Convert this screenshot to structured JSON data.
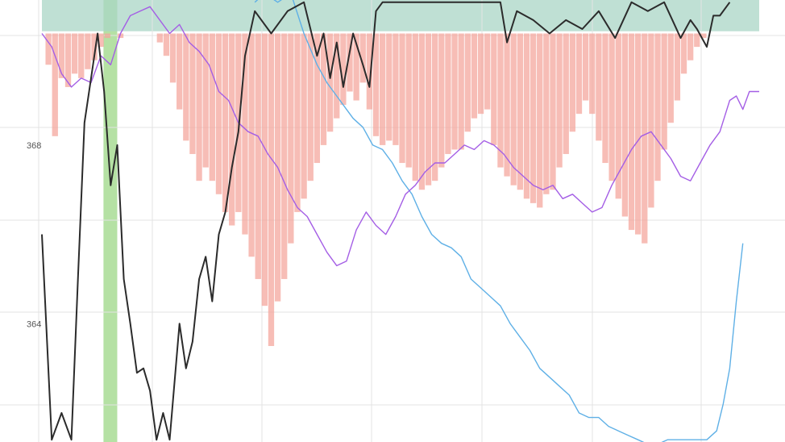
{
  "chart_data": {
    "type": "line",
    "title": "",
    "xlabel": "",
    "ylabel": "",
    "ylim": [
      361.35,
      371.25
    ],
    "xlim": [
      0,
      219
    ],
    "grid": true,
    "legend": "none",
    "y_ticks": [
      {
        "value": 368,
        "label": "368"
      },
      {
        "value": 364,
        "label": "364"
      }
    ],
    "colors": {
      "black_series": "#2b2b2b",
      "blue_series": "#5fb0e6",
      "purple_series": "#a45ee5",
      "red_bars": "#f4a49a",
      "green_band": "#a8dc94",
      "teal_band": "#a9d5c6",
      "grid": "#e3e3e3"
    },
    "series": [
      {
        "kind": "line",
        "color": "black",
        "points": [
          [
            0,
            366.0
          ],
          [
            3,
            361.4
          ],
          [
            6,
            362.0
          ],
          [
            9,
            361.4
          ],
          [
            11,
            365.0
          ],
          [
            13,
            368.5
          ],
          [
            15,
            369.5
          ],
          [
            17,
            370.5
          ],
          [
            19,
            369.2
          ],
          [
            21,
            367.1
          ],
          [
            23,
            368.0
          ],
          [
            25,
            365.0
          ],
          [
            27,
            364.0
          ],
          [
            29,
            362.9
          ],
          [
            31,
            363.0
          ],
          [
            33,
            362.5
          ],
          [
            35,
            361.4
          ],
          [
            37,
            362.0
          ],
          [
            39,
            361.4
          ],
          [
            42,
            364.0
          ],
          [
            44,
            363.0
          ],
          [
            46,
            363.6
          ],
          [
            48,
            365.0
          ],
          [
            50,
            365.5
          ],
          [
            52,
            364.5
          ],
          [
            54,
            366.0
          ],
          [
            56,
            366.5
          ],
          [
            58,
            367.5
          ],
          [
            60,
            368.3
          ],
          [
            62,
            370.0
          ],
          [
            65,
            371.0
          ],
          [
            70,
            370.5
          ],
          [
            75,
            371.0
          ],
          [
            80,
            371.2
          ],
          [
            84,
            370.0
          ],
          [
            86,
            370.5
          ],
          [
            88,
            369.5
          ],
          [
            90,
            370.3
          ],
          [
            92,
            369.3
          ],
          [
            95,
            370.5
          ],
          [
            98,
            369.8
          ],
          [
            100,
            369.3
          ],
          [
            102,
            371.0
          ],
          [
            104,
            371.2
          ],
          [
            110,
            371.2
          ],
          [
            140,
            371.2
          ],
          [
            142,
            370.3
          ],
          [
            145,
            371.0
          ],
          [
            150,
            370.8
          ],
          [
            155,
            370.5
          ],
          [
            160,
            370.8
          ],
          [
            165,
            370.6
          ],
          [
            170,
            371.0
          ],
          [
            175,
            370.4
          ],
          [
            180,
            371.2
          ],
          [
            185,
            371.0
          ],
          [
            190,
            371.2
          ],
          [
            195,
            370.4
          ],
          [
            198,
            370.8
          ],
          [
            200,
            370.6
          ],
          [
            203,
            370.2
          ],
          [
            205,
            370.9
          ],
          [
            207,
            370.9
          ],
          [
            210,
            371.2
          ]
        ]
      },
      {
        "kind": "line",
        "color": "blue",
        "points": [
          [
            65,
            371.2
          ],
          [
            68,
            371.4
          ],
          [
            72,
            371.2
          ],
          [
            76,
            371.4
          ],
          [
            80,
            370.5
          ],
          [
            84,
            369.8
          ],
          [
            87,
            369.4
          ],
          [
            89,
            369.2
          ],
          [
            91,
            369.0
          ],
          [
            93,
            368.8
          ],
          [
            95,
            368.6
          ],
          [
            98,
            368.4
          ],
          [
            101,
            368.0
          ],
          [
            104,
            367.9
          ],
          [
            107,
            367.6
          ],
          [
            110,
            367.2
          ],
          [
            113,
            366.9
          ],
          [
            116,
            366.4
          ],
          [
            119,
            366.0
          ],
          [
            122,
            365.8
          ],
          [
            125,
            365.7
          ],
          [
            128,
            365.5
          ],
          [
            131,
            365.0
          ],
          [
            134,
            364.8
          ],
          [
            137,
            364.6
          ],
          [
            140,
            364.4
          ],
          [
            143,
            364.0
          ],
          [
            146,
            363.7
          ],
          [
            149,
            363.4
          ],
          [
            152,
            363.0
          ],
          [
            155,
            362.8
          ],
          [
            158,
            362.6
          ],
          [
            161,
            362.4
          ],
          [
            164,
            362.0
          ],
          [
            167,
            361.9
          ],
          [
            170,
            361.9
          ],
          [
            173,
            361.7
          ],
          [
            176,
            361.6
          ],
          [
            179,
            361.5
          ],
          [
            182,
            361.4
          ],
          [
            185,
            361.3
          ],
          [
            188,
            361.3
          ],
          [
            191,
            361.4
          ],
          [
            194,
            361.4
          ],
          [
            197,
            361.4
          ],
          [
            200,
            361.4
          ],
          [
            203,
            361.4
          ],
          [
            206,
            361.6
          ],
          [
            208,
            362.2
          ],
          [
            210,
            363.0
          ],
          [
            212,
            364.5
          ],
          [
            214,
            365.8
          ]
        ]
      },
      {
        "kind": "line",
        "color": "purple",
        "points": [
          [
            0,
            370.5
          ],
          [
            3,
            370.2
          ],
          [
            6,
            369.6
          ],
          [
            9,
            369.3
          ],
          [
            12,
            369.5
          ],
          [
            15,
            369.4
          ],
          [
            18,
            370.0
          ],
          [
            21,
            369.8
          ],
          [
            24,
            370.5
          ],
          [
            27,
            370.9
          ],
          [
            30,
            371.0
          ],
          [
            33,
            371.1
          ],
          [
            36,
            370.8
          ],
          [
            39,
            370.5
          ],
          [
            42,
            370.7
          ],
          [
            45,
            370.3
          ],
          [
            48,
            370.1
          ],
          [
            51,
            369.8
          ],
          [
            54,
            369.2
          ],
          [
            57,
            369.0
          ],
          [
            60,
            368.5
          ],
          [
            63,
            368.3
          ],
          [
            66,
            368.2
          ],
          [
            69,
            367.8
          ],
          [
            72,
            367.5
          ],
          [
            75,
            367.0
          ],
          [
            78,
            366.6
          ],
          [
            81,
            366.4
          ],
          [
            84,
            366.0
          ],
          [
            87,
            365.6
          ],
          [
            90,
            365.3
          ],
          [
            93,
            365.4
          ],
          [
            96,
            366.1
          ],
          [
            99,
            366.5
          ],
          [
            102,
            366.2
          ],
          [
            105,
            366.0
          ],
          [
            108,
            366.4
          ],
          [
            111,
            366.9
          ],
          [
            114,
            367.1
          ],
          [
            117,
            367.4
          ],
          [
            120,
            367.6
          ],
          [
            123,
            367.6
          ],
          [
            126,
            367.8
          ],
          [
            129,
            368.0
          ],
          [
            132,
            367.9
          ],
          [
            135,
            368.1
          ],
          [
            138,
            368.0
          ],
          [
            141,
            367.8
          ],
          [
            144,
            367.5
          ],
          [
            147,
            367.3
          ],
          [
            150,
            367.1
          ],
          [
            153,
            367.0
          ],
          [
            156,
            367.1
          ],
          [
            159,
            366.8
          ],
          [
            162,
            366.9
          ],
          [
            165,
            366.7
          ],
          [
            168,
            366.5
          ],
          [
            171,
            366.6
          ],
          [
            174,
            367.1
          ],
          [
            177,
            367.5
          ],
          [
            180,
            367.9
          ],
          [
            183,
            368.2
          ],
          [
            186,
            368.3
          ],
          [
            189,
            368.0
          ],
          [
            192,
            367.7
          ],
          [
            195,
            367.3
          ],
          [
            198,
            367.2
          ],
          [
            201,
            367.6
          ],
          [
            204,
            368.0
          ],
          [
            207,
            368.3
          ],
          [
            210,
            369.0
          ],
          [
            212,
            369.1
          ],
          [
            214,
            368.8
          ],
          [
            216,
            369.2
          ],
          [
            219,
            369.2
          ]
        ]
      }
    ],
    "bars": {
      "kind": "bar",
      "color": "red",
      "baseline": 370.5,
      "x": [
        2,
        4,
        6,
        8,
        10,
        12,
        14,
        16,
        18,
        20,
        22,
        24,
        26,
        28,
        30,
        32,
        34,
        36,
        38,
        40,
        42,
        44,
        46,
        48,
        50,
        52,
        54,
        56,
        58,
        60,
        62,
        64,
        66,
        68,
        70,
        72,
        74,
        76,
        78,
        80,
        82,
        84,
        86,
        88,
        90,
        92,
        94,
        96,
        98,
        100,
        102,
        104,
        106,
        108,
        110,
        112,
        114,
        116,
        118,
        120,
        122,
        124,
        126,
        128,
        130,
        132,
        134,
        136,
        138,
        140,
        142,
        144,
        146,
        148,
        150,
        152,
        154,
        156,
        158,
        160,
        162,
        164,
        166,
        168,
        170,
        172,
        174,
        176,
        178,
        180,
        182,
        184,
        186,
        188,
        190,
        192,
        194,
        196,
        198,
        200,
        202,
        204,
        206
      ],
      "values": [
        369.8,
        368.2,
        369.5,
        369.3,
        369.6,
        369.5,
        369.7,
        369.9,
        370.2,
        370.4,
        370.5,
        370.4,
        370.5,
        370.5,
        370.5,
        370.5,
        370.5,
        370.3,
        370.0,
        369.4,
        368.8,
        368.1,
        367.8,
        367.2,
        367.5,
        367.2,
        366.9,
        366.5,
        366.2,
        366.5,
        366.0,
        365.5,
        365.0,
        364.4,
        363.5,
        364.5,
        365.0,
        365.8,
        366.5,
        366.8,
        367.2,
        367.6,
        368.0,
        368.3,
        368.6,
        368.9,
        369.2,
        369.0,
        369.4,
        368.8,
        368.2,
        368.0,
        368.1,
        368.0,
        367.6,
        367.5,
        367.2,
        367.0,
        367.1,
        367.2,
        367.5,
        367.8,
        367.9,
        367.9,
        368.3,
        368.6,
        368.7,
        368.8,
        368.0,
        367.5,
        367.3,
        367.1,
        367.0,
        366.8,
        366.7,
        366.6,
        366.9,
        367.0,
        367.5,
        367.8,
        368.3,
        368.7,
        369.0,
        368.7,
        368.1,
        367.6,
        367.2,
        366.8,
        366.4,
        366.1,
        366.0,
        365.8,
        366.6,
        367.2,
        367.9,
        368.5,
        369.0,
        369.6,
        369.9,
        370.2,
        370.4,
        370.5,
        370.5
      ]
    },
    "bands": [
      {
        "kind": "vband",
        "color": "green",
        "x_start": 18.8,
        "x_end": 23.0
      },
      {
        "kind": "hband",
        "color": "teal",
        "y_start": 370.55,
        "y_end": 371.25
      }
    ]
  }
}
